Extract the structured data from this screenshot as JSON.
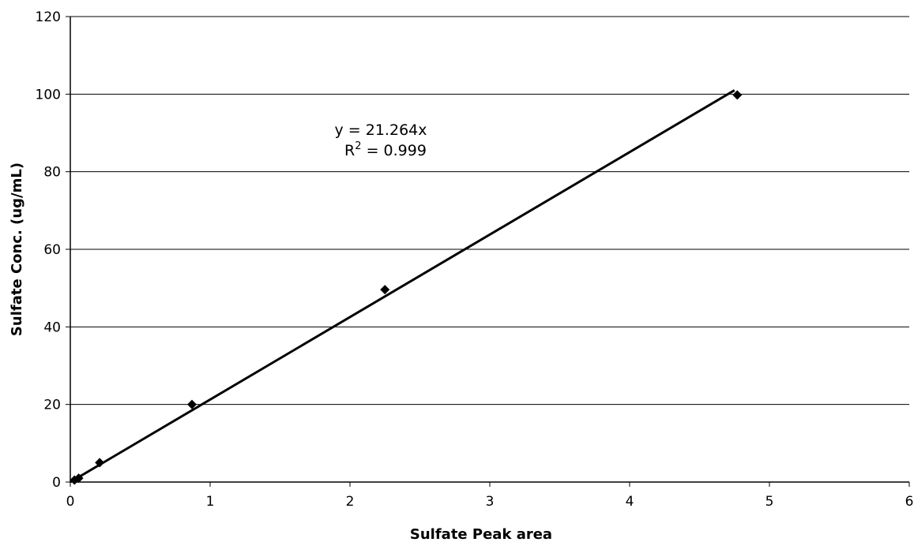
{
  "chart_data": {
    "type": "scatter",
    "xlabel": "Sulfate Peak area",
    "ylabel": "Sulfate Conc. (ug/mL)",
    "xlim": [
      0,
      6
    ],
    "ylim": [
      0,
      120
    ],
    "xticks": [
      0,
      1,
      2,
      3,
      4,
      5,
      6
    ],
    "yticks": [
      0,
      20,
      40,
      60,
      80,
      100,
      120
    ],
    "grid": "horizontal",
    "series": [
      {
        "marker": "diamond",
        "color": "#000000",
        "points": [
          {
            "x": 0.03,
            "y": 0.5
          },
          {
            "x": 0.06,
            "y": 1
          },
          {
            "x": 0.21,
            "y": 5
          },
          {
            "x": 0.87,
            "y": 20
          },
          {
            "x": 2.25,
            "y": 49.6
          },
          {
            "x": 4.77,
            "y": 99.8
          }
        ]
      }
    ],
    "trendline": {
      "slope": 21.264,
      "x_range": [
        0,
        4.75
      ],
      "equation_lines": [
        "y = 21.264x",
        "R",
        "2",
        " = 0.999"
      ]
    }
  }
}
